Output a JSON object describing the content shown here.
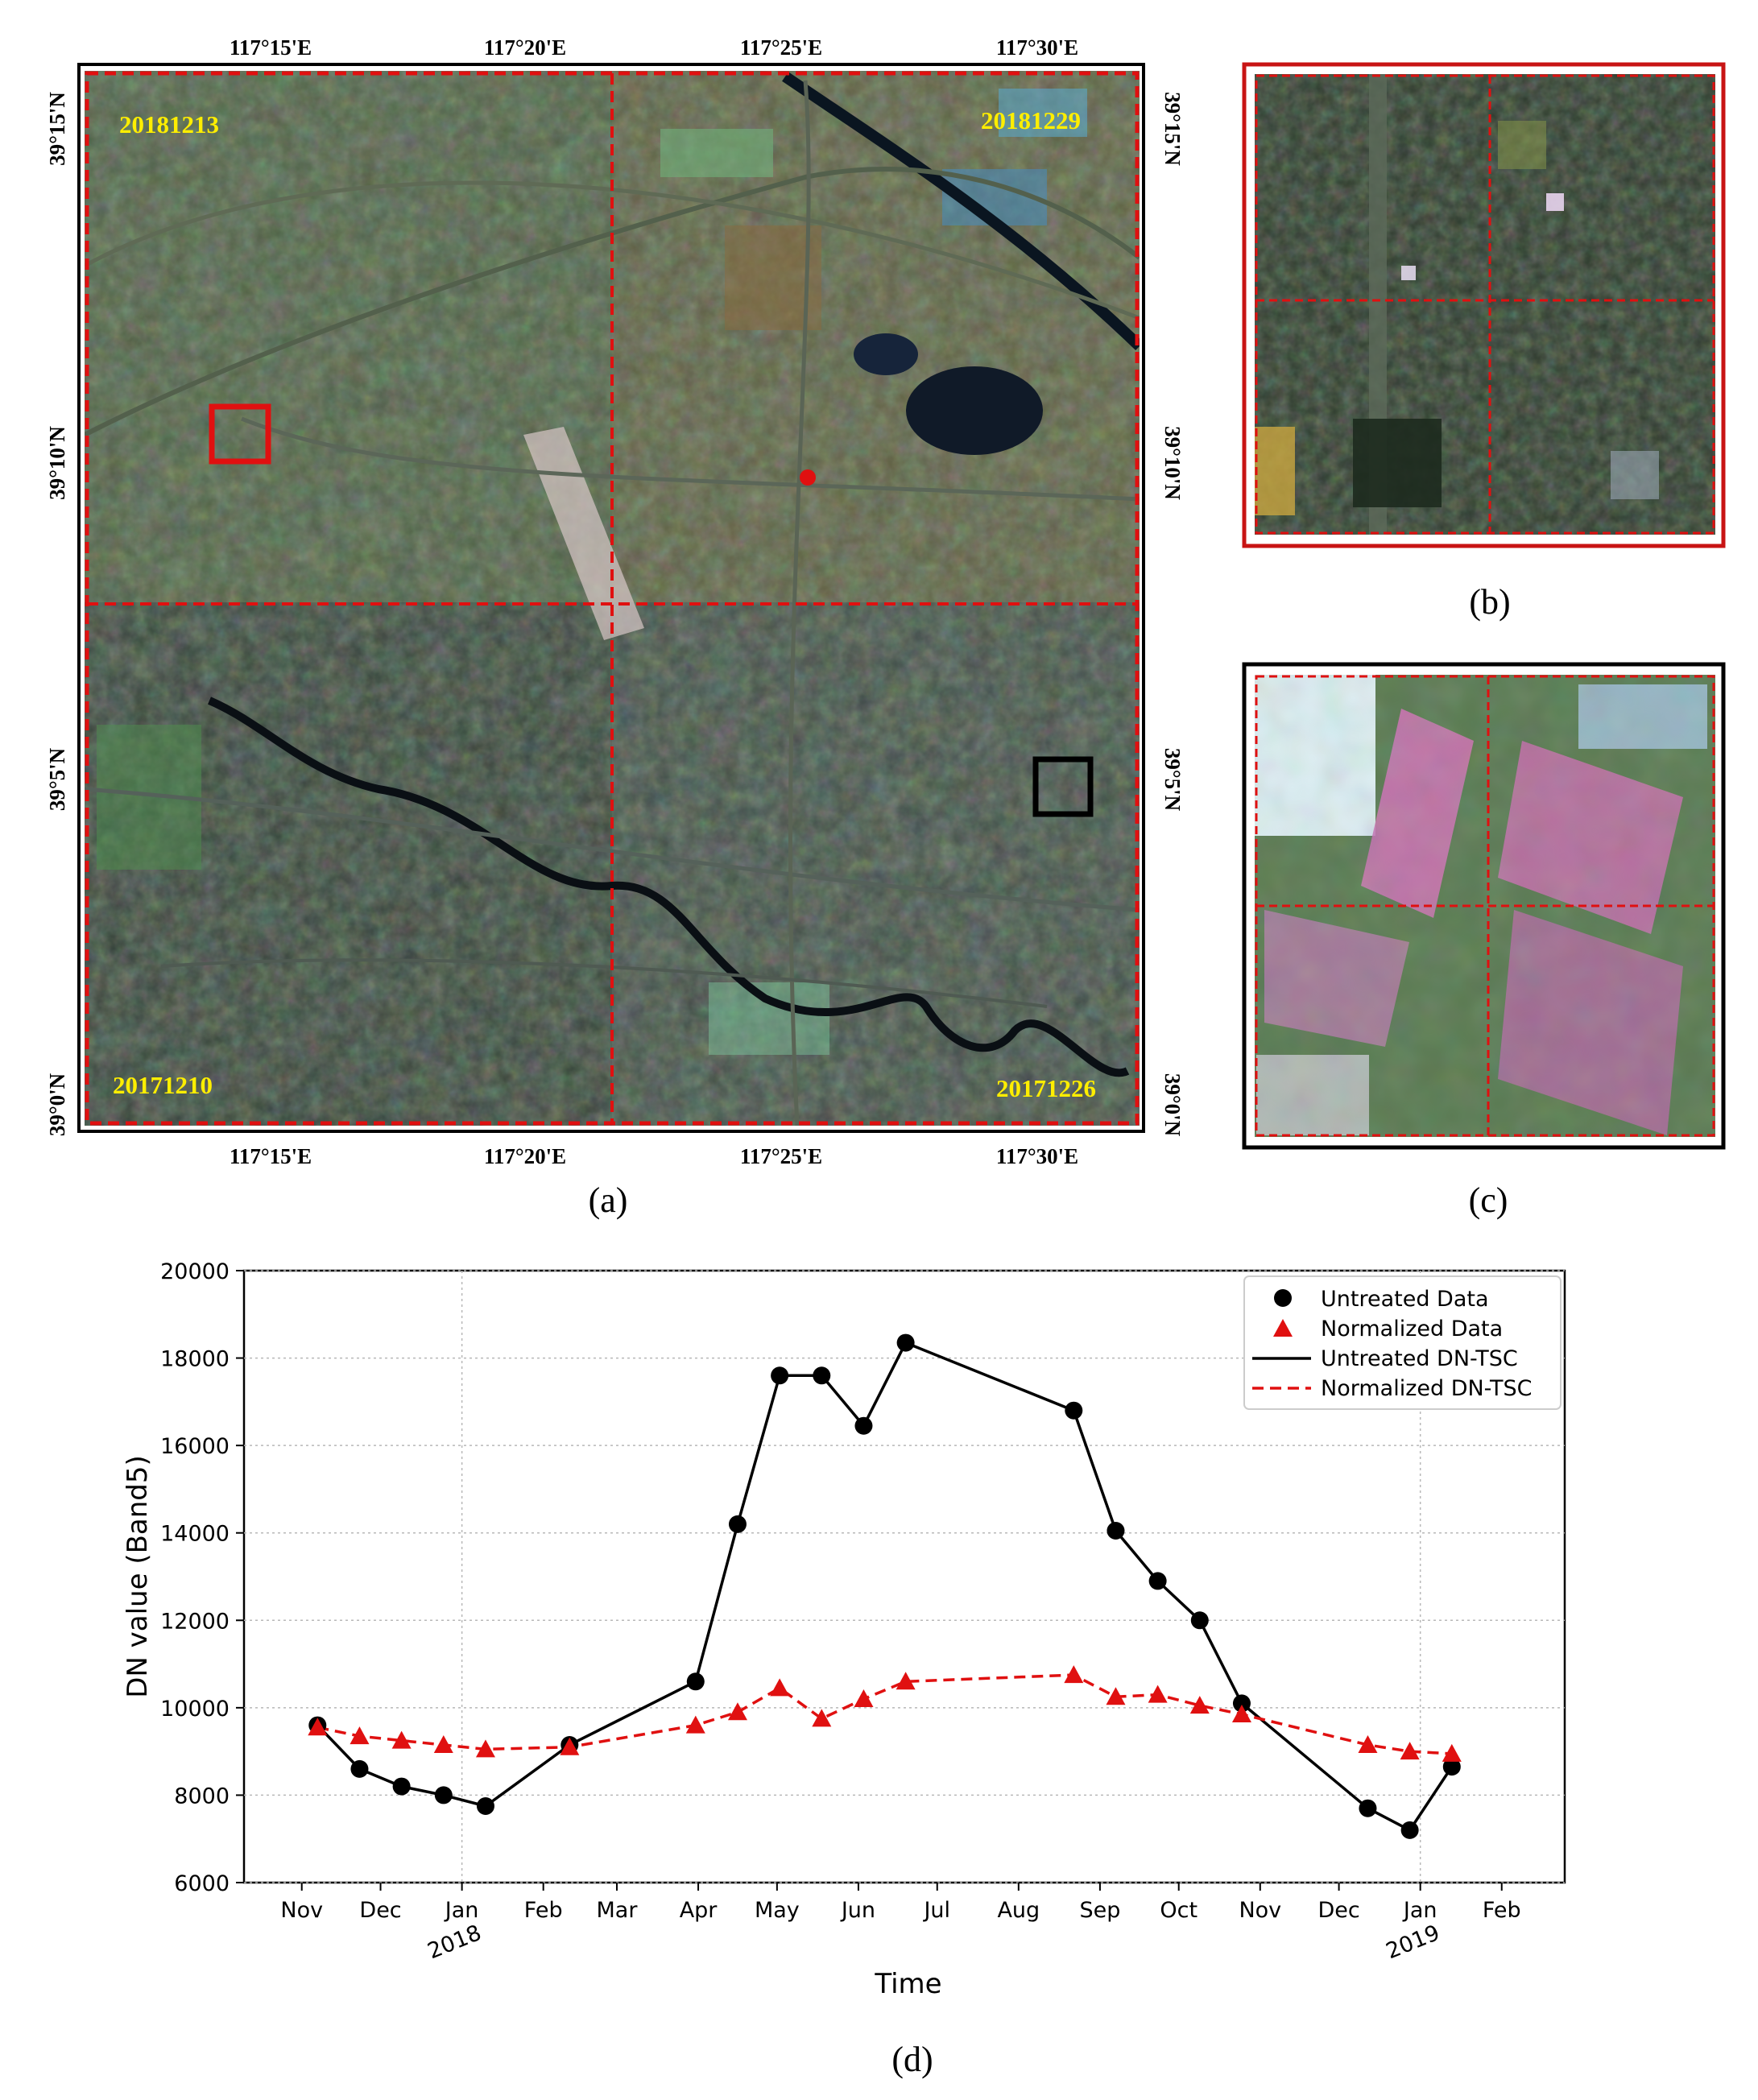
{
  "panels": {
    "a": {
      "caption": "(a)",
      "lon_ticks": [
        "117°15'E",
        "117°20'E",
        "117°25'E",
        "117°30'E"
      ],
      "lat_ticks": [
        "39°15'N",
        "39°10'N",
        "39°5'N",
        "39°0'N"
      ],
      "dates": {
        "top_left": "20181213",
        "top_right": "20181229",
        "bottom_left": "20171210",
        "bottom_right": "20171226"
      },
      "colors": {
        "date_text": "#ffee00",
        "dashed_border": "#e01010",
        "red_box": "#e01010",
        "black_box": "#000000",
        "point": "#e01010"
      }
    },
    "b": {
      "caption": "(b)"
    },
    "c": {
      "caption": "(c)"
    },
    "d": {
      "caption": "(d)"
    }
  },
  "chart_data": {
    "type": "line",
    "title": "",
    "xlabel": "Time",
    "ylabel": "DN value (Band5)",
    "ylim": [
      6000,
      20000
    ],
    "yticks": [
      "6000",
      "8000",
      "10000",
      "12000",
      "14000",
      "16000",
      "18000",
      "20000"
    ],
    "xticks": [
      "Nov",
      "Dec",
      "Jan",
      "Feb",
      "Mar",
      "Apr",
      "May",
      "Jun",
      "Jul",
      "Aug",
      "Sep",
      "Oct",
      "Nov",
      "Dec",
      "Jan",
      "Feb"
    ],
    "year_labels": [
      {
        "text": "2018",
        "after_tick": 2
      },
      {
        "text": "2019",
        "after_tick": 14
      }
    ],
    "grid": true,
    "legend": "top-right",
    "legend_entries": [
      "Untreated Data",
      "Normalized Data",
      "Untreated DN-TSC",
      "Normalized DN-TSC"
    ],
    "series": [
      {
        "name": "Untreated Data",
        "color": "#000000",
        "marker": "circle",
        "line": "solid",
        "x": [
          "2017-11-07",
          "2017-11-23",
          "2017-12-09",
          "2017-12-25",
          "2018-01-10",
          "2018-02-11",
          "2018-03-31",
          "2018-04-16",
          "2018-05-02",
          "2018-05-18",
          "2018-06-03",
          "2018-06-19",
          "2018-08-22",
          "2018-09-07",
          "2018-09-23",
          "2018-10-09",
          "2018-10-25",
          "2018-12-12",
          "2018-12-28",
          "2019-01-13"
        ],
        "values": [
          9600,
          8600,
          8200,
          8000,
          7750,
          9150,
          10600,
          14200,
          17600,
          17600,
          16450,
          18350,
          16800,
          14050,
          12900,
          12000,
          10100,
          7700,
          7200,
          8650
        ]
      },
      {
        "name": "Normalized Data",
        "color": "#e01010",
        "marker": "triangle",
        "line": "dashed",
        "x": [
          "2017-11-07",
          "2017-11-23",
          "2017-12-09",
          "2017-12-25",
          "2018-01-10",
          "2018-02-11",
          "2018-03-31",
          "2018-04-16",
          "2018-05-02",
          "2018-05-18",
          "2018-06-03",
          "2018-06-19",
          "2018-08-22",
          "2018-09-07",
          "2018-09-23",
          "2018-10-09",
          "2018-10-25",
          "2018-12-12",
          "2018-12-28",
          "2019-01-13"
        ],
        "values": [
          9550,
          9350,
          9250,
          9150,
          9050,
          9100,
          9600,
          9900,
          10450,
          9750,
          10200,
          10600,
          10750,
          10250,
          10300,
          10050,
          9850,
          9150,
          9000,
          8950
        ]
      }
    ]
  }
}
